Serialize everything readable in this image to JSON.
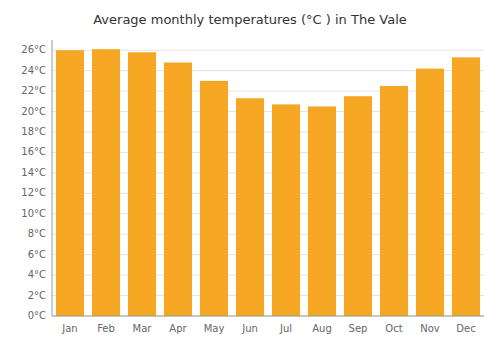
{
  "chart_data": {
    "type": "bar",
    "title": "Average monthly temperatures (°C ) in The Vale",
    "categories": [
      "Jan",
      "Feb",
      "Mar",
      "Apr",
      "May",
      "Jun",
      "Jul",
      "Aug",
      "Sep",
      "Oct",
      "Nov",
      "Dec"
    ],
    "values": [
      26.0,
      26.1,
      25.8,
      24.8,
      23.0,
      21.3,
      20.7,
      20.5,
      21.5,
      22.5,
      24.2,
      25.3
    ],
    "color": "#F5A623",
    "ylim": [
      0,
      27
    ],
    "yticks": [
      {
        "value": 0,
        "label": "0°C"
      },
      {
        "value": 2,
        "label": "2°C"
      },
      {
        "value": 4,
        "label": "4°C"
      },
      {
        "value": 6,
        "label": "6°C"
      },
      {
        "value": 8,
        "label": "8°C"
      },
      {
        "value": 10,
        "label": "10°C"
      },
      {
        "value": 12,
        "label": "12°C"
      },
      {
        "value": 14,
        "label": "14°C"
      },
      {
        "value": 16,
        "label": "16°C"
      },
      {
        "value": 18,
        "label": "18°C"
      },
      {
        "value": 20,
        "label": "20°C"
      },
      {
        "value": 22,
        "label": "22°C"
      },
      {
        "value": 24,
        "label": "24°C"
      },
      {
        "value": 26,
        "label": "26°C"
      }
    ],
    "grid": true
  }
}
